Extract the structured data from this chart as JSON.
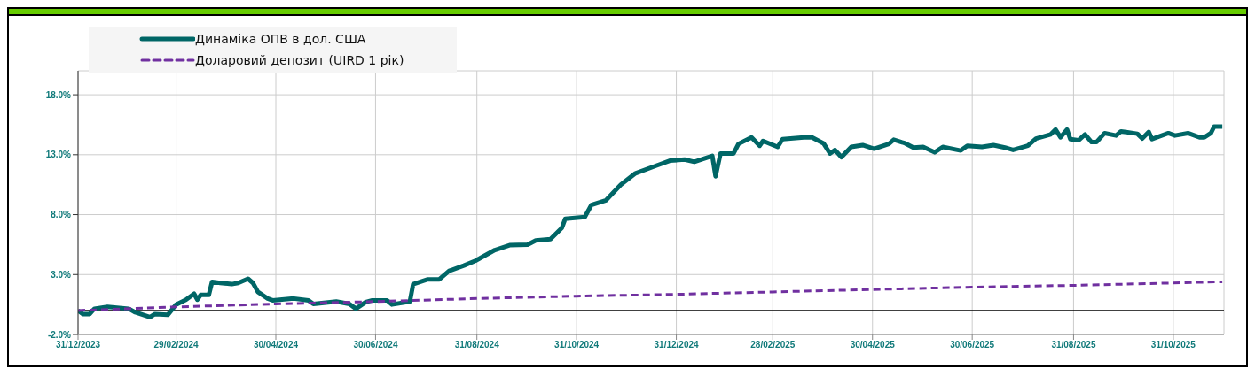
{
  "chart_data": {
    "type": "line",
    "legend": "top left",
    "grid": true,
    "xlim": [
      "2023-12-31",
      "2025-12-01"
    ],
    "xticks": [
      {
        "value": "2023-12-31",
        "label": "31/12/2023"
      },
      {
        "value": "2024-02-29",
        "label": "29/02/2024"
      },
      {
        "value": "2024-04-30",
        "label": "30/04/2024"
      },
      {
        "value": "2024-06-30",
        "label": "30/06/2024"
      },
      {
        "value": "2024-08-31",
        "label": "31/08/2024"
      },
      {
        "value": "2024-10-31",
        "label": "31/10/2024"
      },
      {
        "value": "2024-12-31",
        "label": "31/12/2024"
      },
      {
        "value": "2025-02-28",
        "label": "28/02/2025"
      },
      {
        "value": "2025-04-30",
        "label": "30/04/2025"
      },
      {
        "value": "2025-06-30",
        "label": "30/06/2025"
      },
      {
        "value": "2025-08-31",
        "label": "31/08/2025"
      },
      {
        "value": "2025-10-31",
        "label": "31/10/2025"
      }
    ],
    "ylim": [
      -2,
      20
    ],
    "yticks": [
      {
        "value": -2,
        "label": "-2.0%"
      },
      {
        "value": 3,
        "label": "3.0%"
      },
      {
        "value": 8,
        "label": "8.0%"
      },
      {
        "value": 13,
        "label": "13.0%"
      },
      {
        "value": 18,
        "label": "18.0%"
      }
    ],
    "ref_lines": [
      {
        "axis": "y",
        "value": 0,
        "label": null,
        "color": "#000000"
      }
    ],
    "series": [
      {
        "name": "Динаміка ОПВ в дол. США",
        "color": "#006666",
        "line_style": "solid",
        "x": [
          "2023-12-31",
          "2024-01-03",
          "2024-01-07",
          "2024-01-10",
          "2024-01-18",
          "2024-01-31",
          "2024-02-04",
          "2024-02-13",
          "2024-02-16",
          "2024-02-24",
          "2024-02-29",
          "2024-03-06",
          "2024-03-11",
          "2024-03-13",
          "2024-03-15",
          "2024-03-20",
          "2024-03-22",
          "2024-03-27",
          "2024-04-03",
          "2024-04-07",
          "2024-04-13",
          "2024-04-16",
          "2024-04-19",
          "2024-04-25",
          "2024-04-28",
          "2024-05-11",
          "2024-05-20",
          "2024-05-23",
          "2024-06-06",
          "2024-06-14",
          "2024-06-18",
          "2024-06-24",
          "2024-06-28",
          "2024-07-07",
          "2024-07-10",
          "2024-07-21",
          "2024-07-23",
          "2024-08-01",
          "2024-08-08",
          "2024-08-14",
          "2024-08-23",
          "2024-08-30",
          "2024-09-11",
          "2024-09-20",
          "2024-10-01",
          "2024-10-06",
          "2024-10-15",
          "2024-10-22",
          "2024-10-24",
          "2024-11-05",
          "2024-11-09",
          "2024-11-18",
          "2024-11-27",
          "2024-12-06",
          "2024-12-19",
          "2024-12-27",
          "2025-01-05",
          "2025-01-11",
          "2025-01-22",
          "2025-01-24",
          "2025-01-27",
          "2025-02-04",
          "2025-02-07",
          "2025-02-15",
          "2025-02-20",
          "2025-02-22",
          "2025-03-03",
          "2025-03-06",
          "2025-03-19",
          "2025-03-24",
          "2025-03-31",
          "2025-04-04",
          "2025-04-07",
          "2025-04-11",
          "2025-04-17",
          "2025-04-24",
          "2025-05-01",
          "2025-05-10",
          "2025-05-13",
          "2025-05-20",
          "2025-05-25",
          "2025-05-31",
          "2025-06-07",
          "2025-06-12",
          "2025-06-23",
          "2025-06-27",
          "2025-07-06",
          "2025-07-13",
          "2025-07-20",
          "2025-07-25",
          "2025-08-03",
          "2025-08-08",
          "2025-08-17",
          "2025-08-20",
          "2025-08-23",
          "2025-08-27",
          "2025-08-29",
          "2025-09-03",
          "2025-09-07",
          "2025-09-11",
          "2025-09-14",
          "2025-09-19",
          "2025-09-26",
          "2025-09-29",
          "2025-10-09",
          "2025-10-12",
          "2025-10-16",
          "2025-10-18",
          "2025-10-28",
          "2025-11-01",
          "2025-11-09",
          "2025-11-16",
          "2025-11-19",
          "2025-11-23",
          "2025-11-25",
          "2025-11-30"
        ],
        "values": [
          0.0,
          -0.3,
          -0.3,
          0.15,
          0.3,
          0.15,
          -0.15,
          -0.55,
          -0.3,
          -0.35,
          0.5,
          0.9,
          1.4,
          0.9,
          1.3,
          1.3,
          2.4,
          2.3,
          2.2,
          2.3,
          2.65,
          2.3,
          1.55,
          1.0,
          0.85,
          1.0,
          0.85,
          0.55,
          0.75,
          0.55,
          0.15,
          0.7,
          0.85,
          0.85,
          0.5,
          0.75,
          2.2,
          2.6,
          2.6,
          3.3,
          3.75,
          4.15,
          5.05,
          5.45,
          5.5,
          5.85,
          5.95,
          6.9,
          7.65,
          7.8,
          8.8,
          9.2,
          10.5,
          11.45,
          12.1,
          12.5,
          12.6,
          12.4,
          12.9,
          11.2,
          13.1,
          13.1,
          13.9,
          14.45,
          13.75,
          14.15,
          13.65,
          14.3,
          14.45,
          14.45,
          13.95,
          13.1,
          13.4,
          12.8,
          13.65,
          13.8,
          13.5,
          13.9,
          14.25,
          13.95,
          13.6,
          13.65,
          13.2,
          13.65,
          13.35,
          13.75,
          13.65,
          13.8,
          13.6,
          13.4,
          13.75,
          14.35,
          14.7,
          15.1,
          14.45,
          15.1,
          14.3,
          14.2,
          14.7,
          14.05,
          14.05,
          14.8,
          14.6,
          14.95,
          14.75,
          14.35,
          14.9,
          14.3,
          14.8,
          14.6,
          14.8,
          14.45,
          14.45,
          14.8,
          15.35,
          15.35
        ]
      },
      {
        "name": "Доларовий депозит (UIRD 1 рік)",
        "color": "#7030a0",
        "line_style": "dashed",
        "x": [
          "2023-12-31",
          "2024-02-29",
          "2024-04-30",
          "2024-06-30",
          "2024-08-31",
          "2024-10-31",
          "2024-12-31",
          "2025-02-28",
          "2025-04-30",
          "2025-06-30",
          "2025-08-31",
          "2025-10-31",
          "2025-11-30"
        ],
        "values": [
          0.0,
          0.3,
          0.55,
          0.75,
          1.0,
          1.2,
          1.35,
          1.55,
          1.75,
          1.95,
          2.1,
          2.3,
          2.4
        ]
      }
    ]
  }
}
